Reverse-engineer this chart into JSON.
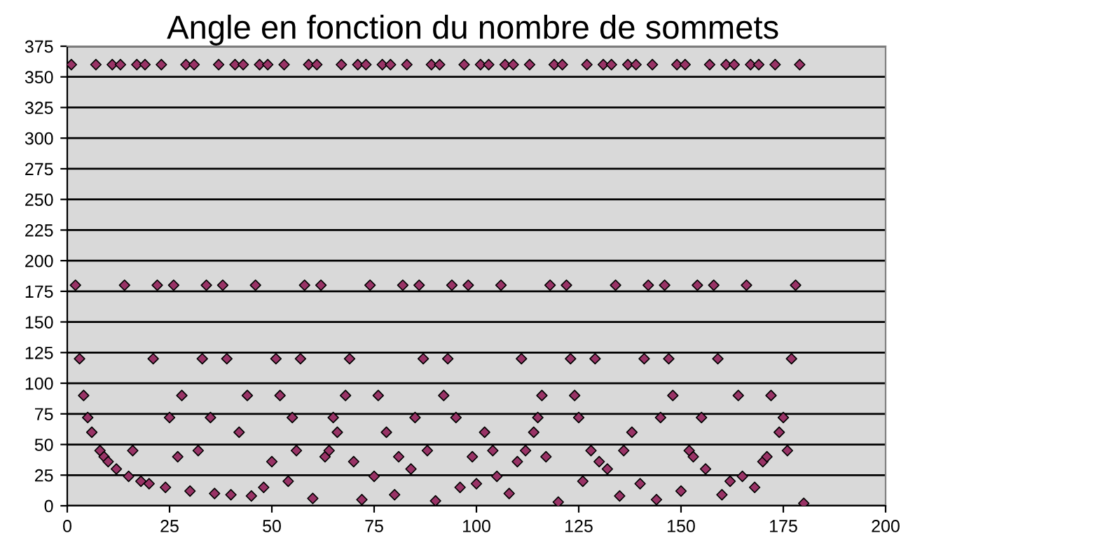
{
  "chart_data": {
    "type": "scatter",
    "title": "Angle en fonction du nombre de sommets",
    "x": [
      1,
      2,
      3,
      4,
      5,
      6,
      7,
      8,
      9,
      10,
      11,
      12,
      13,
      14,
      15,
      16,
      17,
      18,
      19,
      20,
      21,
      22,
      23,
      24,
      25,
      26,
      27,
      28,
      29,
      30,
      31,
      32,
      33,
      34,
      35,
      36,
      37,
      38,
      39,
      40,
      41,
      42,
      43,
      44,
      45,
      46,
      47,
      48,
      49,
      50,
      51,
      52,
      53,
      54,
      55,
      56,
      57,
      58,
      59,
      60,
      61,
      62,
      63,
      64,
      65,
      66,
      67,
      68,
      69,
      70,
      71,
      72,
      73,
      74,
      75,
      76,
      77,
      78,
      79,
      80,
      81,
      82,
      83,
      84,
      85,
      86,
      87,
      88,
      89,
      90,
      91,
      92,
      93,
      94,
      95,
      96,
      97,
      98,
      99,
      100,
      101,
      102,
      103,
      104,
      105,
      106,
      107,
      108,
      109,
      110,
      111,
      112,
      113,
      114,
      115,
      116,
      117,
      118,
      119,
      120,
      121,
      122,
      123,
      124,
      125,
      126,
      127,
      128,
      129,
      130,
      131,
      132,
      133,
      134,
      135,
      136,
      137,
      138,
      139,
      140,
      141,
      142,
      143,
      144,
      145,
      146,
      147,
      148,
      149,
      150,
      151,
      152,
      153,
      154,
      155,
      156,
      157,
      158,
      159,
      160,
      161,
      162,
      163,
      164,
      165,
      166,
      167,
      168,
      169,
      170,
      171,
      172,
      173,
      174,
      175,
      176,
      177,
      178,
      179,
      180
    ],
    "series": [
      {
        "color": "#993366",
        "values": [
          360,
          180,
          120,
          90,
          72,
          60,
          360,
          45,
          40,
          36,
          360,
          30,
          360,
          180,
          24,
          45,
          360,
          20,
          360,
          18,
          120,
          180,
          360,
          15,
          72,
          180,
          40,
          90,
          360,
          12,
          360,
          45,
          120,
          180,
          72,
          10,
          360,
          180,
          120,
          9,
          360,
          60,
          360,
          90,
          8,
          180,
          360,
          15,
          360,
          36,
          120,
          90,
          360,
          20,
          72,
          45,
          120,
          180,
          360,
          6,
          360,
          180,
          40,
          45,
          72,
          60,
          360,
          90,
          120,
          36,
          360,
          5,
          360,
          180,
          24,
          90,
          360,
          60,
          360,
          9,
          40,
          180,
          360,
          30,
          72,
          180,
          120,
          45,
          360,
          4,
          360,
          90,
          120,
          180,
          72,
          15,
          360,
          180,
          40,
          18,
          360,
          60,
          360,
          45,
          24,
          180,
          360,
          10,
          360,
          36,
          120,
          45,
          360,
          60,
          72,
          90,
          40,
          180,
          360,
          3,
          360,
          180,
          120,
          90,
          72,
          20,
          360,
          45,
          120,
          36,
          360,
          30,
          360,
          180,
          8,
          45,
          360,
          60,
          360,
          18,
          120,
          180,
          360,
          5,
          72,
          180,
          120,
          90,
          360,
          12,
          360,
          45,
          40,
          180,
          72,
          30,
          360,
          180,
          120,
          9,
          360,
          20,
          360,
          90,
          24,
          180,
          360,
          15,
          360,
          36,
          40,
          90,
          360,
          60,
          72,
          45,
          120,
          180,
          360,
          2
        ]
      }
    ],
    "marker": "diamond",
    "xlim": [
      0,
      200
    ],
    "xticks": [
      0,
      25,
      50,
      75,
      100,
      125,
      150,
      175,
      200
    ],
    "ylim": [
      0,
      375
    ],
    "yticks": [
      0,
      25,
      50,
      75,
      100,
      125,
      150,
      175,
      200,
      225,
      250,
      275,
      300,
      325,
      350,
      375
    ],
    "grid": "y",
    "legend": false
  }
}
